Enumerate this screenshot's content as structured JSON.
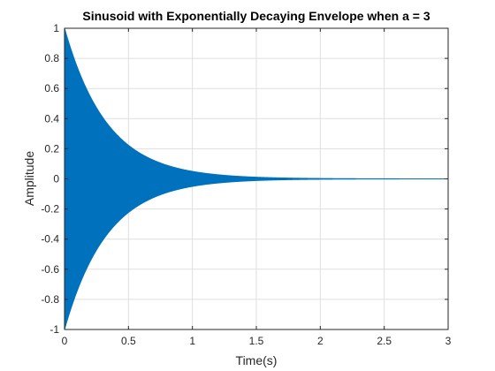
{
  "chart_data": {
    "type": "line",
    "title": "Sinusoid with Exponentially Decaying Envelope when a = 3",
    "xlabel": "Time(s)",
    "ylabel": "Amplitude",
    "xlim": [
      0,
      3
    ],
    "ylim": [
      -1,
      1
    ],
    "xticks": [
      0,
      0.5,
      1,
      1.5,
      2,
      2.5,
      3
    ],
    "xtick_labels": [
      "0",
      "0.5",
      "1",
      "1.5",
      "2",
      "2.5",
      "3"
    ],
    "yticks": [
      -1,
      -0.8,
      -0.6,
      -0.4,
      -0.2,
      0,
      0.2,
      0.4,
      0.6,
      0.8,
      1
    ],
    "ytick_labels": [
      "-1",
      "-0.8",
      "-0.6",
      "-0.4",
      "-0.2",
      "0",
      "0.2",
      "0.4",
      "0.6",
      "0.8",
      "1"
    ],
    "grid": true,
    "series": [
      {
        "function": "exp(-a*t)*cos(2*pi*f*t)",
        "a": 3,
        "envelope": "exp(-3t)",
        "color": "#0072bd"
      }
    ]
  }
}
